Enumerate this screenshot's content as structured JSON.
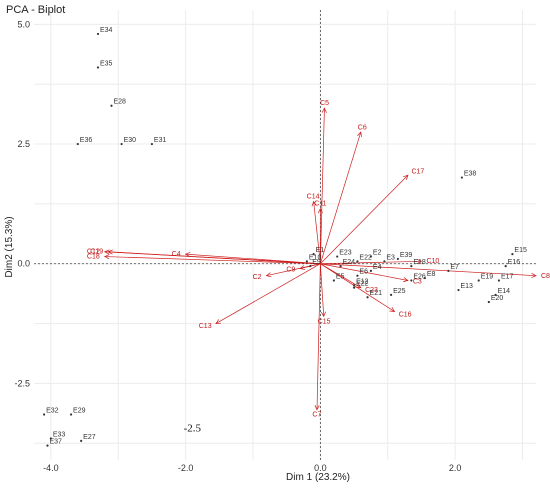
{
  "chart_data": {
    "type": "scatter",
    "title": "PCA - Biplot",
    "xlabel": "Dim 1 (23.2%)",
    "ylabel": "Dim2 (15.3%)",
    "xlim": [
      -4.25,
      3.2
    ],
    "ylim": [
      -4.1,
      5.3
    ],
    "xticks": [
      {
        "v": -4,
        "label": "-4.0"
      },
      {
        "v": -2,
        "label": "-2.0"
      },
      {
        "v": 0,
        "label": "0.0"
      },
      {
        "v": 2,
        "label": "2.0"
      }
    ],
    "yticks": [
      {
        "v": 5,
        "label": "5.0"
      },
      {
        "v": 2.5,
        "label": "2.5"
      },
      {
        "v": 0,
        "label": "0.0"
      },
      {
        "v": -2.5,
        "label": "-2.5"
      }
    ],
    "annotation": {
      "text": "-2.5",
      "x": -1.9,
      "y": -3.5
    },
    "grid": true,
    "colors": {
      "individuals": "#333333",
      "variables": "#d01c1c",
      "zero_lines": "#444444",
      "grid": "#ececec"
    },
    "individuals": [
      {
        "label": "E34",
        "x": -3.3,
        "y": 4.8
      },
      {
        "label": "E35",
        "x": -3.3,
        "y": 4.1
      },
      {
        "label": "E28",
        "x": -3.1,
        "y": 3.3
      },
      {
        "label": "E36",
        "x": -3.6,
        "y": 2.5
      },
      {
        "label": "E30",
        "x": -2.95,
        "y": 2.5
      },
      {
        "label": "E31",
        "x": -2.5,
        "y": 2.5
      },
      {
        "label": "E38",
        "x": 2.1,
        "y": 1.8
      },
      {
        "label": "E1",
        "x": -0.1,
        "y": 0.2
      },
      {
        "label": "E10",
        "x": -0.2,
        "y": 0.05
      },
      {
        "label": "E9",
        "x": -0.15,
        "y": -0.05
      },
      {
        "label": "E23",
        "x": 0.25,
        "y": 0.15
      },
      {
        "label": "E2",
        "x": 0.75,
        "y": 0.15
      },
      {
        "label": "E22",
        "x": 0.55,
        "y": 0.05
      },
      {
        "label": "E3",
        "x": 0.95,
        "y": 0.05
      },
      {
        "label": "E39",
        "x": 1.15,
        "y": 0.1
      },
      {
        "label": "E24",
        "x": 0.3,
        "y": -0.05
      },
      {
        "label": "E4",
        "x": 0.75,
        "y": -0.15
      },
      {
        "label": "E6",
        "x": 0.55,
        "y": -0.25
      },
      {
        "label": "E5",
        "x": 0.2,
        "y": -0.35
      },
      {
        "label": "E12",
        "x": 0.5,
        "y": -0.45
      },
      {
        "label": "E22",
        "x": 0.5,
        "y": -0.5
      },
      {
        "label": "E21",
        "x": 0.7,
        "y": -0.7
      },
      {
        "label": "E25",
        "x": 1.05,
        "y": -0.65
      },
      {
        "label": "E26",
        "x": 1.35,
        "y": -0.35
      },
      {
        "label": "E18",
        "x": 1.35,
        "y": -0.05
      },
      {
        "label": "E8",
        "x": 1.55,
        "y": -0.3
      },
      {
        "label": "E7",
        "x": 1.9,
        "y": -0.15
      },
      {
        "label": "E13",
        "x": 2.05,
        "y": -0.55
      },
      {
        "label": "E19",
        "x": 2.35,
        "y": -0.35
      },
      {
        "label": "E17",
        "x": 2.65,
        "y": -0.35
      },
      {
        "label": "E16",
        "x": 2.75,
        "y": -0.05
      },
      {
        "label": "E15",
        "x": 2.85,
        "y": 0.2
      },
      {
        "label": "E14",
        "x": 2.6,
        "y": -0.65
      },
      {
        "label": "E20",
        "x": 2.5,
        "y": -0.8
      },
      {
        "label": "E32",
        "x": -4.1,
        "y": -3.15
      },
      {
        "label": "E29",
        "x": -3.7,
        "y": -3.15
      },
      {
        "label": "E33",
        "x": -4.0,
        "y": -3.65
      },
      {
        "label": "E27",
        "x": -3.55,
        "y": -3.7
      },
      {
        "label": "E37",
        "x": -4.05,
        "y": -3.8
      }
    ],
    "variables": [
      {
        "label": "C5",
        "x": 0.06,
        "y": 3.25
      },
      {
        "label": "C6",
        "x": 0.6,
        "y": 2.75
      },
      {
        "label": "C17",
        "x": 1.3,
        "y": 1.85
      },
      {
        "label": "C14",
        "x": -0.1,
        "y": 1.3
      },
      {
        "label": "C11",
        "x": 0.0,
        "y": 1.15
      },
      {
        "label": "C12",
        "x": -3.2,
        "y": 0.25
      },
      {
        "label": "C19",
        "x": -3.15,
        "y": 0.25
      },
      {
        "label": "C18",
        "x": -3.2,
        "y": 0.15
      },
      {
        "label": "C4",
        "x": -2.0,
        "y": 0.2
      },
      {
        "label": "C2",
        "x": -0.8,
        "y": -0.25
      },
      {
        "label": "C9",
        "x": -0.3,
        "y": -0.1
      },
      {
        "label": "C13",
        "x": -1.55,
        "y": -1.25
      },
      {
        "label": "C15",
        "x": 0.05,
        "y": -1.1
      },
      {
        "label": "C16",
        "x": 1.1,
        "y": -1.0
      },
      {
        "label": "C23",
        "x": 0.6,
        "y": -0.5
      },
      {
        "label": "C10",
        "x": 1.5,
        "y": 0.05
      },
      {
        "label": "C3",
        "x": 1.3,
        "y": -0.35
      },
      {
        "label": "C8",
        "x": 3.2,
        "y": -0.25
      },
      {
        "label": "C7",
        "x": -0.05,
        "y": -3.05
      }
    ]
  }
}
